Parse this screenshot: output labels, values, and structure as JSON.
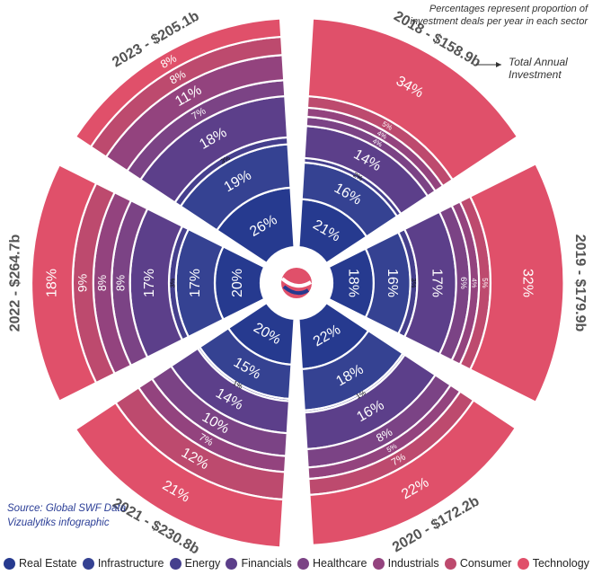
{
  "header_note": "Percentages represent proportion of investment deals per year in each sector",
  "total_label": "Total Annual Investment",
  "source_line1": "Source: Global SWF Data",
  "source_line2": "Vizualytiks infographic",
  "colors": [
    "#263a8f",
    "#354292",
    "#453f8d",
    "#5c3f8a",
    "#7b4385",
    "#93437e",
    "#bd4a6e",
    "#e0506a"
  ],
  "chart_data": {
    "type": "radial-stacked",
    "sectors": [
      "Real Estate",
      "Infrastructure",
      "Energy",
      "Financials",
      "Healthcare",
      "Industrials",
      "Consumer",
      "Technology"
    ],
    "unit": "%",
    "years": [
      {
        "label": "2018 - $158.9b",
        "total_billion": 158.9,
        "values": [
          "21%",
          "16%",
          "2%",
          "14%",
          "4%",
          "4%",
          "5%",
          "34%"
        ]
      },
      {
        "label": "2019 - $179.9b",
        "total_billion": 179.9,
        "values": [
          "18%",
          "16%",
          "3%",
          "17%",
          "6%",
          "4%",
          "5%",
          "32%"
        ]
      },
      {
        "label": "2020 - $172.2b",
        "total_billion": 172.2,
        "values": [
          "22%",
          "18%",
          "1%",
          "16%",
          "8%",
          "5%",
          "7%",
          "22%"
        ]
      },
      {
        "label": "2021 - $230.8b",
        "total_billion": 230.8,
        "values": [
          "20%",
          "15%",
          "1%",
          "14%",
          "10%",
          "7%",
          "12%",
          "21%"
        ]
      },
      {
        "label": "2022 - $264.7b",
        "total_billion": 264.7,
        "values": [
          "20%",
          "17%",
          "3%",
          "17%",
          "8%",
          "8%",
          "9%",
          "18%"
        ]
      },
      {
        "label": "2023 - $205.1b",
        "total_billion": 205.1,
        "values": [
          "26%",
          "19%",
          "3%",
          "18%",
          "7%",
          "11%",
          "8%",
          "8%"
        ]
      }
    ]
  }
}
